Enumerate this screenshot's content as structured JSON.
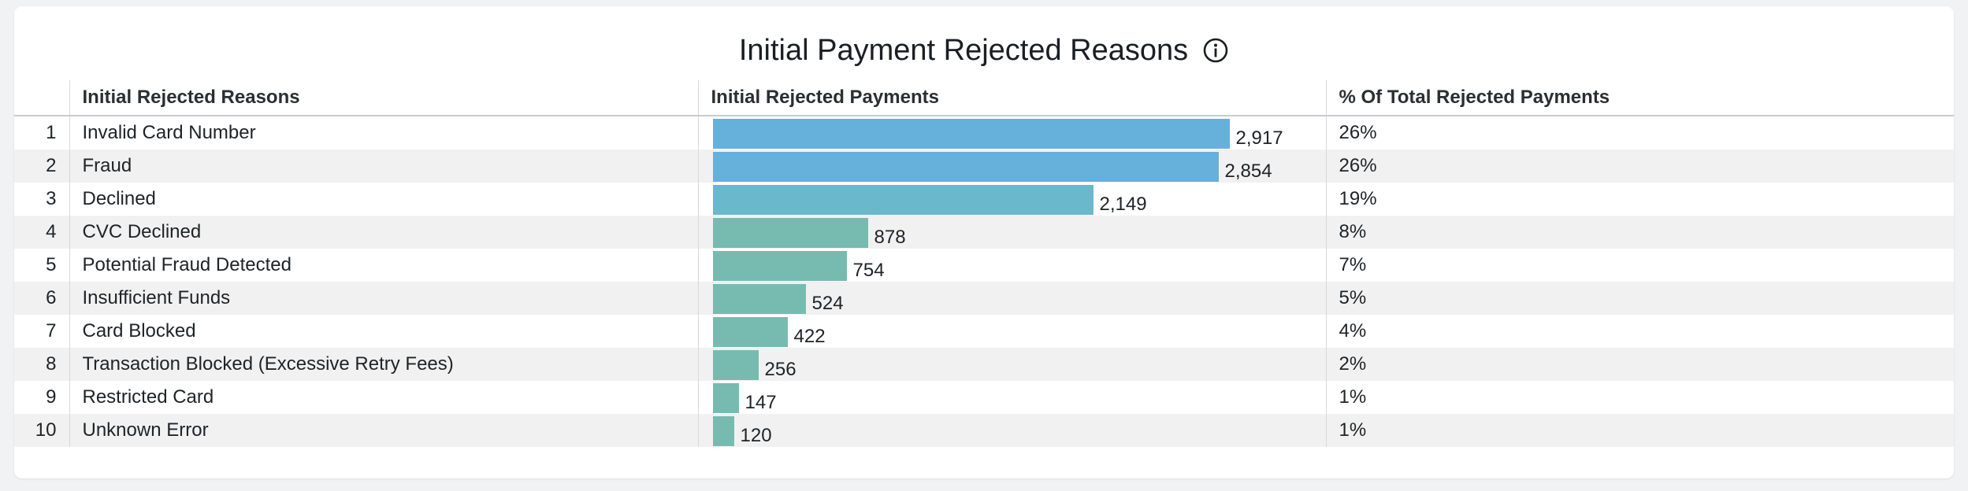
{
  "chart_data": {
    "type": "table",
    "title": "Initial Payment Rejected Reasons",
    "columns": [
      "Initial Rejected Reasons",
      "Initial Rejected Payments",
      "% Of Total Rejected Payments"
    ],
    "rows": [
      {
        "rank": "1",
        "reason": "Invalid Card Number",
        "payments": 2917,
        "payments_label": "2,917",
        "percent": "26%"
      },
      {
        "rank": "2",
        "reason": "Fraud",
        "payments": 2854,
        "payments_label": "2,854",
        "percent": "26%"
      },
      {
        "rank": "3",
        "reason": "Declined",
        "payments": 2149,
        "payments_label": "2,149",
        "percent": "19%"
      },
      {
        "rank": "4",
        "reason": "CVC Declined",
        "payments": 878,
        "payments_label": "878",
        "percent": "8%"
      },
      {
        "rank": "5",
        "reason": "Potential Fraud Detected",
        "payments": 754,
        "payments_label": "754",
        "percent": "7%"
      },
      {
        "rank": "6",
        "reason": "Insufficient Funds",
        "payments": 524,
        "payments_label": "524",
        "percent": "5%"
      },
      {
        "rank": "7",
        "reason": "Card Blocked",
        "payments": 422,
        "payments_label": "422",
        "percent": "4%"
      },
      {
        "rank": "8",
        "reason": "Transaction Blocked (Excessive Retry Fees)",
        "payments": 256,
        "payments_label": "256",
        "percent": "2%"
      },
      {
        "rank": "9",
        "reason": "Restricted Card",
        "payments": 147,
        "payments_label": "147",
        "percent": "1%"
      },
      {
        "rank": "10",
        "reason": "Unknown Error",
        "payments": 120,
        "payments_label": "120",
        "percent": "1%"
      }
    ],
    "bar_max": 2917,
    "colors": {
      "high": "#66b0dc",
      "mid": "#6ab8cc",
      "low": "#77bbb0"
    }
  },
  "icons": {
    "title_info": "info-icon"
  }
}
